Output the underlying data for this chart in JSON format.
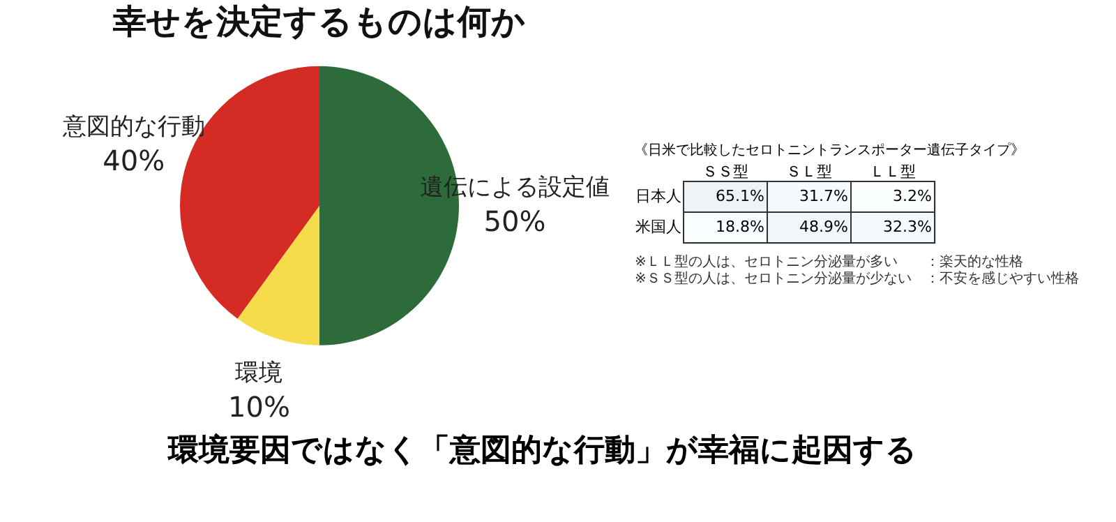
{
  "chart_data": [
    {
      "type": "pie",
      "title": "幸せを決定するものは何か",
      "categories": [
        "遺伝による設定値",
        "環境",
        "意図的な行動"
      ],
      "values": [
        50,
        10,
        40
      ],
      "value_labels": [
        "50%",
        "10%",
        "40%"
      ],
      "colors": [
        "#2e6b3a",
        "#f5dc4a",
        "#d42b25"
      ],
      "annotations": [
        "環境要因ではなく「意図的な行動」が幸福に起因する"
      ]
    },
    {
      "type": "heatmap",
      "title": "《日米で比較したセロトニントランスポーター遺伝子タイプ》",
      "categories": [
        "ＳＳ型",
        "ＳＬ型",
        "ＬＬ型"
      ],
      "y_categories": [
        "日本人",
        "米国人"
      ],
      "cells": [
        [
          65.1,
          31.7,
          3.2
        ],
        [
          18.8,
          48.9,
          32.3
        ]
      ],
      "cell_labels": [
        [
          "65.1%",
          "31.7%",
          "3.2%"
        ],
        [
          "18.8%",
          "48.9%",
          "32.3%"
        ]
      ],
      "annotations": [
        "※ＬＬ型の人は、セロトニン分泌量が多い　　：楽天的な性格",
        "※ＳＳ型の人は、セロトニン分泌量が少ない　：不安を感じやすい性格"
      ]
    }
  ]
}
